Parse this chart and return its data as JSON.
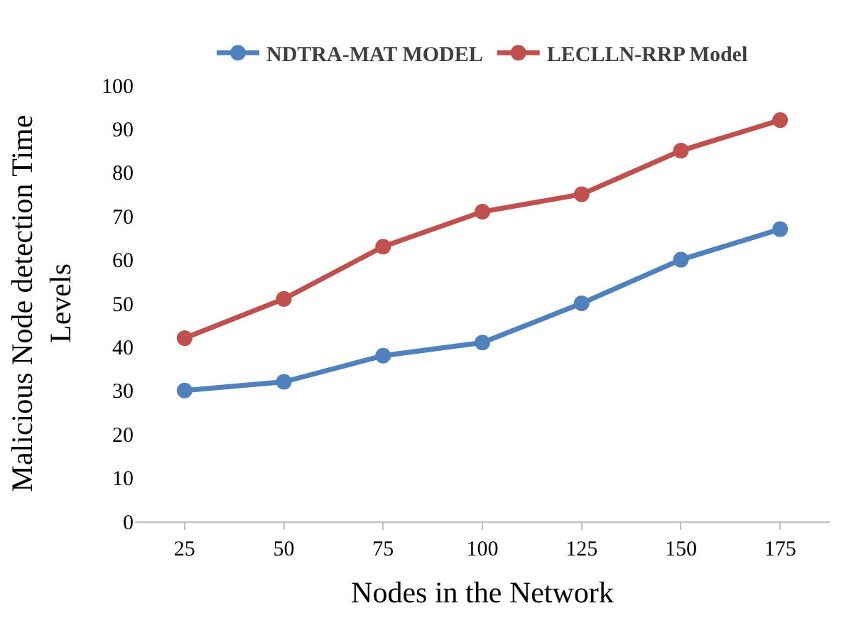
{
  "chart_data": {
    "type": "line",
    "xlabel": "Nodes in the Network",
    "ylabel": "Malicious Node detection Time\nLevels",
    "categories": [
      "25",
      "50",
      "75",
      "100",
      "125",
      "150",
      "175"
    ],
    "series": [
      {
        "name": "NDTRA-MAT MODEL",
        "color": "#4f81bd",
        "values": [
          30,
          32,
          38,
          41,
          50,
          60,
          67
        ]
      },
      {
        "name": "LECLLN-RRP Model",
        "color": "#c0504d",
        "values": [
          42,
          51,
          63,
          71,
          75,
          85,
          92
        ]
      }
    ],
    "ylim": [
      0,
      100
    ],
    "yticks": [
      0,
      10,
      20,
      30,
      40,
      50,
      60,
      70,
      80,
      90,
      100
    ],
    "grid": false,
    "legend": "top",
    "marker": "circle",
    "line_style": "solid"
  }
}
